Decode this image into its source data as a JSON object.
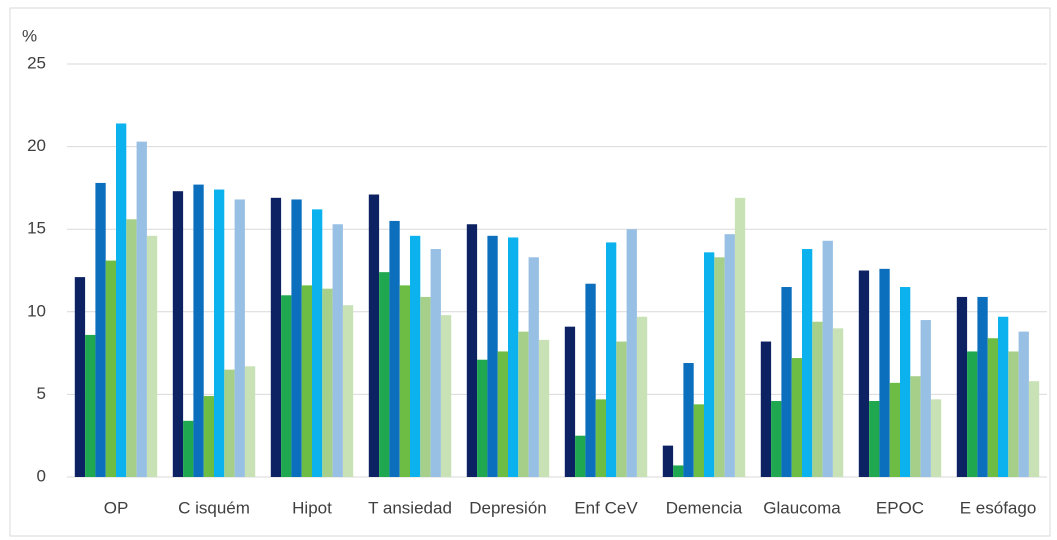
{
  "chart_data": {
    "type": "bar",
    "y_label": "%",
    "categories": [
      "OP",
      "C isquém",
      "Hipot",
      "T ansiedad",
      "Depresión",
      "Enf CeV",
      "Demencia",
      "Glaucoma",
      "EPOC",
      "E esófago"
    ],
    "series": [
      {
        "color": "#0d2262",
        "values": [
          12.1,
          17.3,
          16.9,
          17.1,
          15.3,
          9.1,
          1.9,
          8.2,
          12.5,
          10.9
        ]
      },
      {
        "color": "#1fa84f",
        "values": [
          8.6,
          3.4,
          11.0,
          12.4,
          7.1,
          2.5,
          0.7,
          4.6,
          4.6,
          7.6
        ]
      },
      {
        "color": "#0b6fbe",
        "values": [
          17.8,
          17.7,
          16.8,
          15.5,
          14.6,
          11.7,
          6.9,
          11.5,
          12.6,
          10.9
        ]
      },
      {
        "color": "#6dbd45",
        "values": [
          13.1,
          4.9,
          11.6,
          11.6,
          7.6,
          4.7,
          4.4,
          7.2,
          5.7,
          8.4
        ]
      },
      {
        "color": "#0cb2ee",
        "values": [
          21.4,
          17.4,
          16.2,
          14.6,
          14.5,
          14.2,
          13.6,
          13.8,
          11.5,
          9.7
        ]
      },
      {
        "color": "#a6d08a",
        "values": [
          15.6,
          6.5,
          11.4,
          10.9,
          8.8,
          8.2,
          13.3,
          9.4,
          6.1,
          7.6
        ]
      },
      {
        "color": "#98bfe4",
        "values": [
          20.3,
          16.8,
          15.3,
          13.8,
          13.3,
          15.0,
          14.7,
          14.3,
          9.5,
          8.8
        ]
      },
      {
        "color": "#c8e2b6",
        "values": [
          14.6,
          6.7,
          10.4,
          9.8,
          8.3,
          9.7,
          16.9,
          9.0,
          4.7,
          5.8
        ]
      }
    ],
    "ylim": [
      0,
      25
    ],
    "yticks": [
      0,
      5,
      10,
      15,
      20,
      25
    ],
    "grid": true
  }
}
